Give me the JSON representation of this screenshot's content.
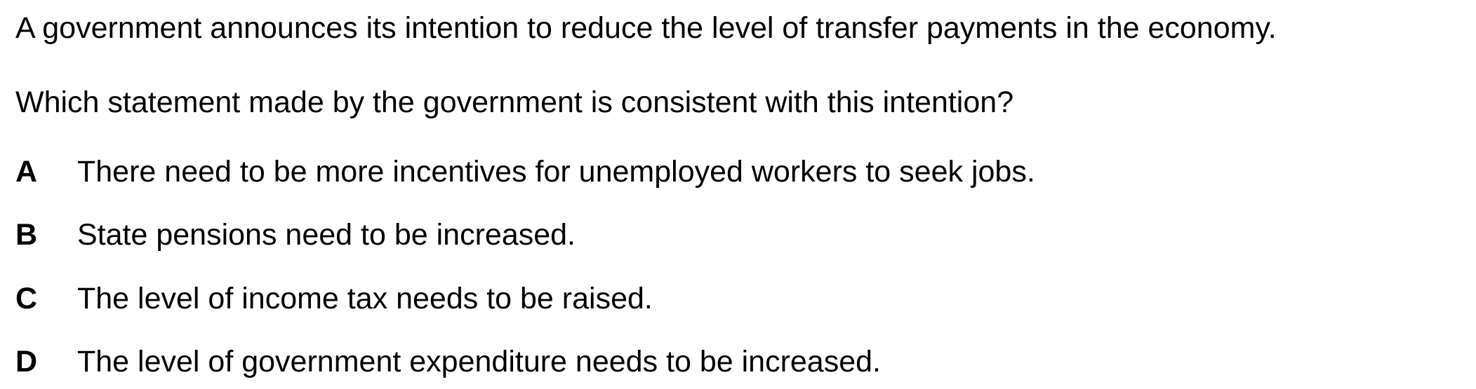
{
  "question": {
    "stem": [
      "A government announces its intention to reduce the level of transfer payments in the economy.",
      "Which statement made by the government is consistent with this intention?"
    ],
    "options": [
      {
        "letter": "A",
        "text": "There need to be more incentives for unemployed workers to seek jobs."
      },
      {
        "letter": "B",
        "text": "State pensions need to be increased."
      },
      {
        "letter": "C",
        "text": "The level of income tax needs to be raised."
      },
      {
        "letter": "D",
        "text": "The level of government expenditure needs to be increased."
      }
    ]
  }
}
